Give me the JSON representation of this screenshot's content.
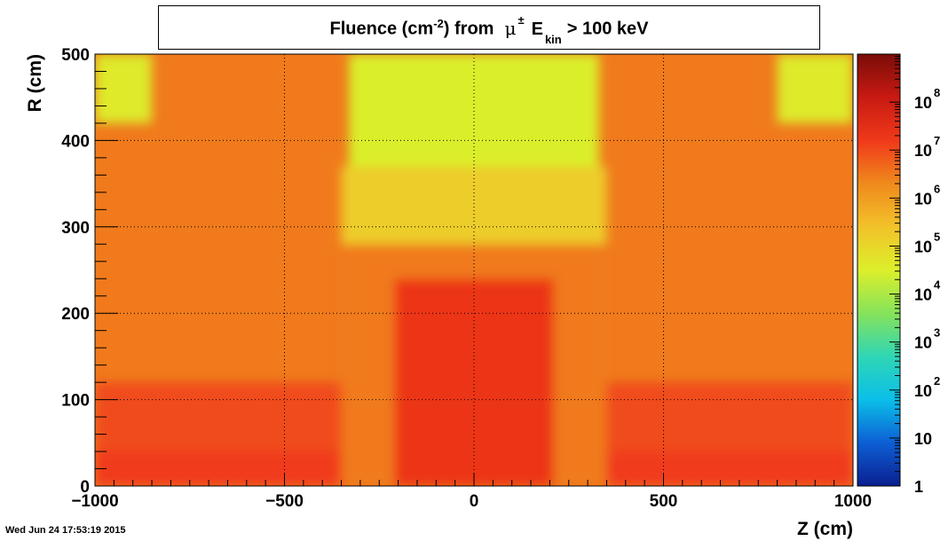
{
  "header": {
    "title_prefix": "Fluence (cm",
    "title_exp": "-2",
    "title_mid": ") from",
    "title_mu": "μ",
    "title_pm": "±",
    "title_e": "E",
    "title_kin": "kin",
    "title_suffix": "> 100 keV"
  },
  "footer": {
    "timestamp": "Wed Jun 24 17:53:19 2015"
  },
  "colors": {
    "cmap": [
      "#0b1f8f",
      "#0c5fd4",
      "#0bbfe8",
      "#2fd6b5",
      "#86e35a",
      "#dcef2a",
      "#f2c22a",
      "#f08a1c",
      "#f0391a",
      "#c81a12",
      "#7a0c08"
    ]
  },
  "chart_data": {
    "type": "heatmap",
    "title": "Fluence (cm^-2) from μ± E_kin > 100 keV",
    "xlabel": "Z (cm)",
    "ylabel": "R (cm)",
    "xlim": [
      -1000,
      1000
    ],
    "ylim": [
      0,
      500
    ],
    "x_ticks": [
      -1000,
      -500,
      0,
      500,
      1000
    ],
    "x_tick_labels": [
      "−1000",
      "−500",
      "0",
      "500",
      "1000"
    ],
    "y_ticks": [
      0,
      100,
      200,
      300,
      400,
      500
    ],
    "y_tick_labels": [
      "0",
      "100",
      "200",
      "300",
      "400",
      "500"
    ],
    "z_scale": "log",
    "zlim": [
      1,
      1000000000
    ],
    "colorbar_ticks": [
      1,
      10,
      100,
      1000,
      10000,
      100000,
      1000000,
      10000000,
      100000000
    ],
    "colorbar_labels": [
      {
        "base": "1",
        "exp": ""
      },
      {
        "base": "10",
        "exp": ""
      },
      {
        "base": "10",
        "exp": "2"
      },
      {
        "base": "10",
        "exp": "3"
      },
      {
        "base": "10",
        "exp": "4"
      },
      {
        "base": "10",
        "exp": "5"
      },
      {
        "base": "10",
        "exp": "6"
      },
      {
        "base": "10",
        "exp": "7"
      },
      {
        "base": "10",
        "exp": "8"
      }
    ],
    "grid": true,
    "regions": [
      {
        "z": [
          -1000,
          1000
        ],
        "r": [
          0,
          500
        ],
        "fluence": 3000000
      },
      {
        "z": [
          -1000,
          1000
        ],
        "r": [
          0,
          120
        ],
        "fluence": 10000000
      },
      {
        "z": [
          -1000,
          1000
        ],
        "r": [
          0,
          40
        ],
        "fluence": 15000000
      },
      {
        "z": [
          -350,
          350
        ],
        "r": [
          0,
          280
        ],
        "fluence": 3000000
      },
      {
        "z": [
          -210,
          210
        ],
        "r": [
          0,
          240
        ],
        "fluence": 20000000
      },
      {
        "z": [
          -350,
          350
        ],
        "r": [
          280,
          370
        ],
        "fluence": 150000
      },
      {
        "z": [
          -330,
          330
        ],
        "r": [
          370,
          500
        ],
        "fluence": 30000
      },
      {
        "z": [
          -1000,
          -850
        ],
        "r": [
          420,
          500
        ],
        "fluence": 40000
      },
      {
        "z": [
          800,
          1000
        ],
        "r": [
          420,
          500
        ],
        "fluence": 40000
      }
    ]
  }
}
